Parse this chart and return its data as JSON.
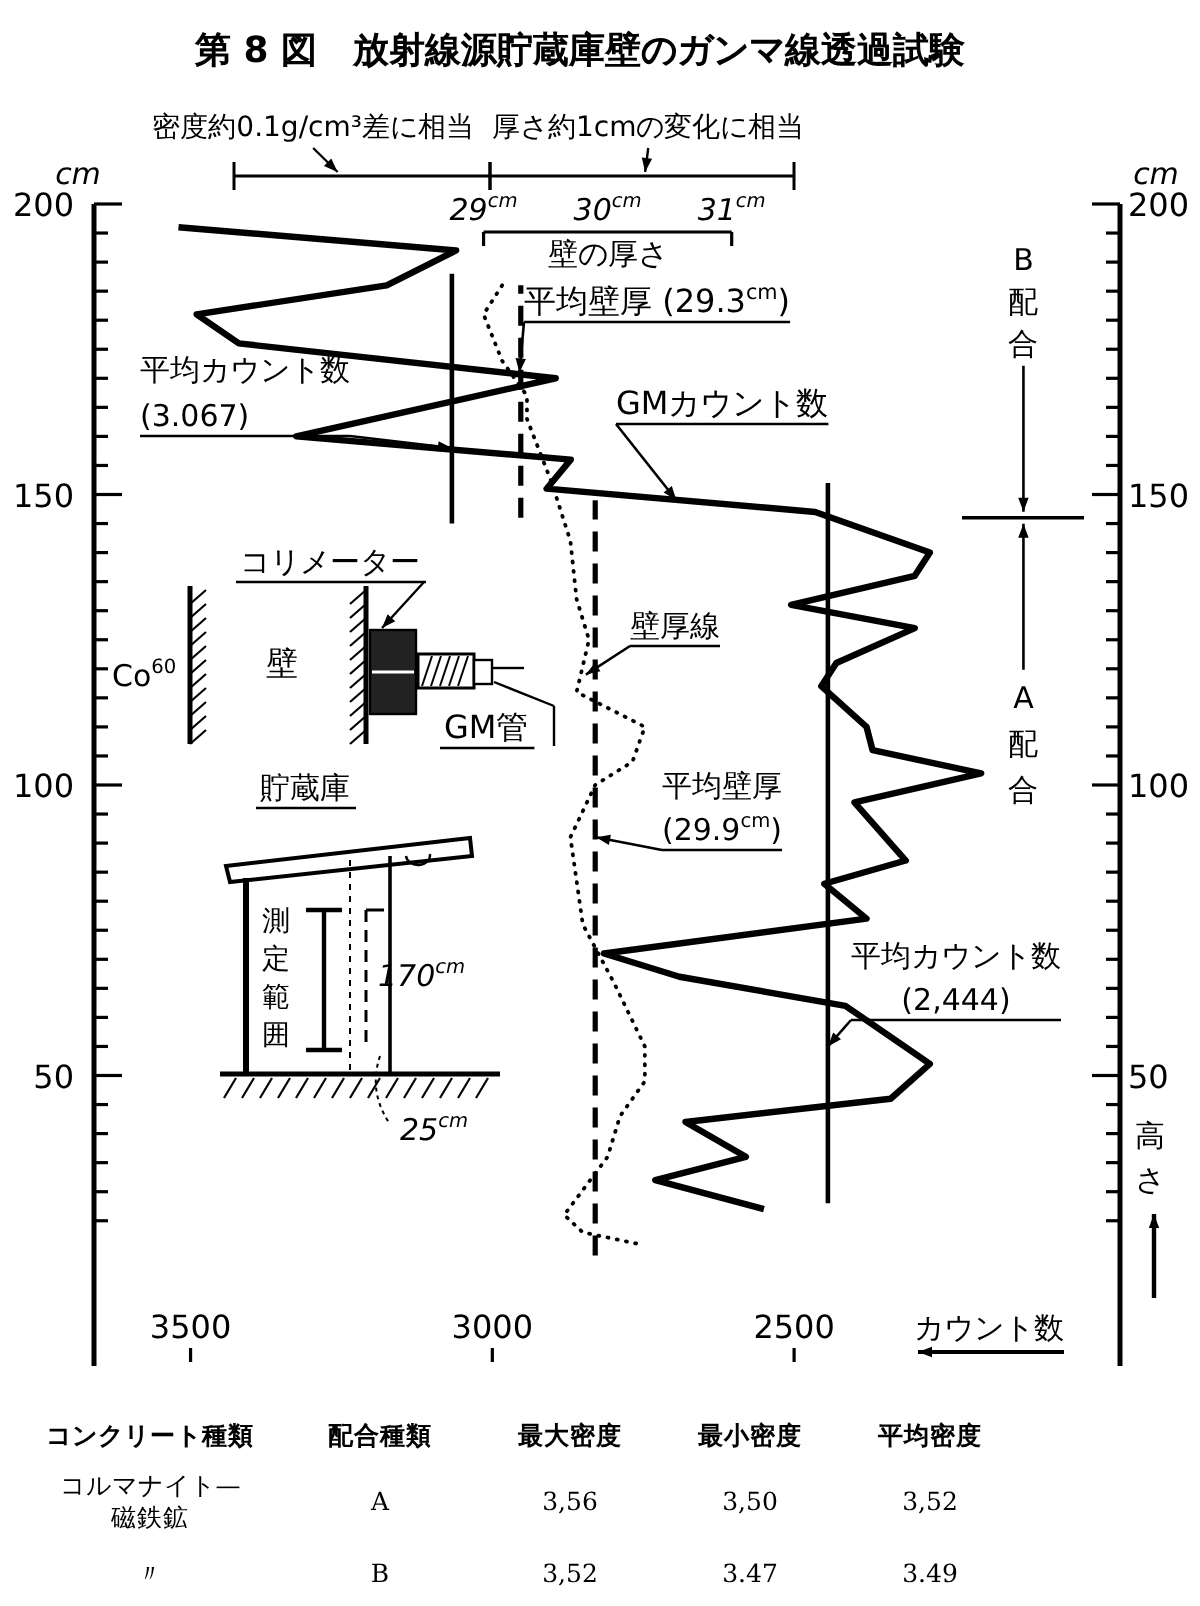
{
  "chart_data": [
    {
      "type": "line",
      "title": "第 8 図　放射線源貯蔵庫壁のガンマ線透過試験",
      "xlabel": "カウント数",
      "x2label": "壁の厚さ",
      "ylabel": "cm",
      "y2label": "cm",
      "xlim": [
        3660,
        1960
      ],
      "xticks": [
        3500,
        3000,
        2500
      ],
      "x2lim": [
        25.86,
        34.13
      ],
      "x2ticks": [
        {
          "value": 29,
          "label": "29$^{cm}$"
        },
        {
          "value": 30,
          "label": "30$^{cm}$"
        },
        {
          "value": 31,
          "label": "31$^{cm}$"
        }
      ],
      "ylim": [
        0,
        200
      ],
      "yticks": [
        {
          "value": 25,
          "label": null
        },
        {
          "value": 30,
          "label": null
        },
        {
          "value": 35,
          "label": null
        },
        {
          "value": 40,
          "label": null
        },
        {
          "value": 45,
          "label": null
        },
        50,
        {
          "value": 55,
          "label": null
        },
        {
          "value": 60,
          "label": null
        },
        {
          "value": 65,
          "label": null
        },
        {
          "value": 70,
          "label": null
        },
        {
          "value": 75,
          "label": null
        },
        {
          "value": 80,
          "label": null
        },
        {
          "value": 85,
          "label": null
        },
        {
          "value": 90,
          "label": null
        },
        {
          "value": 95,
          "label": null
        },
        100,
        {
          "value": 105,
          "label": null
        },
        {
          "value": 110,
          "label": null
        },
        {
          "value": 115,
          "label": null
        },
        {
          "value": 120,
          "label": null
        },
        {
          "value": 125,
          "label": null
        },
        {
          "value": 130,
          "label": null
        },
        {
          "value": 135,
          "label": null
        },
        {
          "value": 140,
          "label": null
        },
        {
          "value": 145,
          "label": null
        },
        150,
        {
          "value": 155,
          "label": null
        },
        {
          "value": 160,
          "label": null
        },
        {
          "value": 165,
          "label": null
        },
        {
          "value": 170,
          "label": null
        },
        {
          "value": 175,
          "label": null
        },
        {
          "value": 180,
          "label": null
        },
        {
          "value": 185,
          "label": null
        },
        {
          "value": 190,
          "label": null
        },
        {
          "value": 195,
          "label": null
        },
        200
      ],
      "y2lim": [
        0,
        200
      ],
      "y2ticks": [
        {
          "value": 25,
          "label": null
        },
        {
          "value": 30,
          "label": null
        },
        {
          "value": 35,
          "label": null
        },
        {
          "value": 40,
          "label": null
        },
        {
          "value": 45,
          "label": null
        },
        50,
        {
          "value": 55,
          "label": null
        },
        {
          "value": 60,
          "label": null
        },
        {
          "value": 65,
          "label": null
        },
        {
          "value": 70,
          "label": null
        },
        {
          "value": 75,
          "label": null
        },
        {
          "value": 80,
          "label": null
        },
        {
          "value": 85,
          "label": null
        },
        {
          "value": 90,
          "label": null
        },
        {
          "value": 95,
          "label": null
        },
        100,
        {
          "value": 105,
          "label": null
        },
        {
          "value": 110,
          "label": null
        },
        {
          "value": 115,
          "label": null
        },
        {
          "value": 120,
          "label": null
        },
        {
          "value": 125,
          "label": null
        },
        {
          "value": 130,
          "label": null
        },
        {
          "value": 135,
          "label": null
        },
        {
          "value": 140,
          "label": null
        },
        {
          "value": 145,
          "label": null
        },
        150,
        {
          "value": 155,
          "label": null
        },
        {
          "value": 160,
          "label": null
        },
        {
          "value": 165,
          "label": null
        },
        {
          "value": 170,
          "label": null
        },
        {
          "value": 175,
          "label": null
        },
        {
          "value": 180,
          "label": null
        },
        {
          "value": 185,
          "label": null
        },
        {
          "value": 190,
          "label": null
        },
        {
          "value": 195,
          "label": null
        },
        200
      ],
      "series": [
        {
          "type": "line",
          "color": "#000000",
          "line_style": "solid",
          "x": [
            3520,
            3060,
            3175,
            3490,
            3420,
            2895,
            3325,
            2870,
            2910,
            2465,
            2275,
            2300,
            2505,
            2300,
            2430,
            2455,
            2380,
            2370,
            2190,
            2400,
            2315,
            2450,
            2380,
            2815,
            2690,
            2415,
            2275,
            2340,
            2680,
            2580,
            2730,
            2550
          ],
          "values": [
            196,
            192,
            186,
            181,
            176,
            170,
            160,
            156,
            151,
            147,
            140,
            136,
            131,
            127,
            121,
            117,
            110,
            106,
            102,
            97,
            87,
            83,
            77,
            71,
            67,
            62,
            52,
            46,
            42,
            36,
            32,
            27
          ]
        },
        {
          "type": "line",
          "axis": "x2",
          "color": "#000000",
          "line_style": "dotted",
          "x": [
            29.15,
            29.0,
            29.15,
            29.35,
            29.35,
            29.55,
            29.7,
            29.75,
            29.85,
            29.75,
            30.3,
            30.2,
            29.9,
            29.7,
            29.8,
            30.05,
            30.3,
            30.3,
            30.1,
            30.0,
            29.65,
            29.8,
            30.25
          ],
          "values": [
            186,
            181,
            173,
            167,
            163,
            152,
            142,
            132,
            125,
            116,
            110,
            104,
            100,
            91,
            76,
            66,
            55,
            49,
            43,
            36,
            26,
            23,
            21
          ]
        },
        {
          "type": "line",
          "color": "#000000",
          "line_style": "solid",
          "x": [
            3067,
            3067
          ],
          "values": [
            145,
            188
          ]
        },
        {
          "type": "line",
          "color": "#000000",
          "line_style": "solid",
          "x": [
            2444,
            2444
          ],
          "values": [
            28,
            152
          ]
        },
        {
          "type": "line",
          "axis": "x2",
          "color": "#000000",
          "line_style": "dashed",
          "x": [
            29.3,
            29.3
          ],
          "values": [
            146,
            186
          ]
        },
        {
          "type": "line",
          "axis": "x2",
          "color": "#000000",
          "line_style": "dashed",
          "x": [
            29.9,
            29.9
          ],
          "values": [
            19,
            149
          ]
        }
      ],
      "ref_lines": [
        {
          "axis": "y",
          "value": 146
        }
      ],
      "annotations": [
        {
          "text": "平均カウント数\n(3.067)",
          "x": 3067,
          "y": 158
        },
        {
          "text": "平均壁厚 (29.3$^{cm}$)",
          "x": 2955,
          "y": 171
        },
        {
          "text": "GMカウント数",
          "x": 2695,
          "y": 149
        },
        {
          "text": "壁厚線",
          "x": 2845,
          "y": 119
        },
        {
          "text": "平均壁厚\n(29.9$^{cm}$)",
          "x": 2828,
          "y": 91
        },
        {
          "text": "平均カウント数\n(2,444)",
          "x": 2444,
          "y": 55
        },
        "コリメーター",
        "壁",
        "Co$^{60}$",
        "GM管",
        "貯蔵庫",
        "測定範囲",
        "170$^{cm}$",
        "25$^{cm}$",
        "高さ",
        {
          "text": "B配合",
          "x": 2120,
          "y": 146
        },
        {
          "text": "A配合",
          "x": 2120,
          "y": 146
        },
        "密度約0.1g/cm³差に相当",
        "厚さ約1cmの変化に相当"
      ]
    },
    {
      "type": "other",
      "annotations": [
        "コンクリート種類",
        "配合種類",
        "最大密度",
        "最小密度",
        "平均密度",
        "コルマナイト—\n磁鉄鉱",
        "A",
        "3,56",
        "3,50",
        "3,52",
        "〃",
        "B",
        "3,52",
        "3.47",
        "3.49"
      ]
    }
  ]
}
